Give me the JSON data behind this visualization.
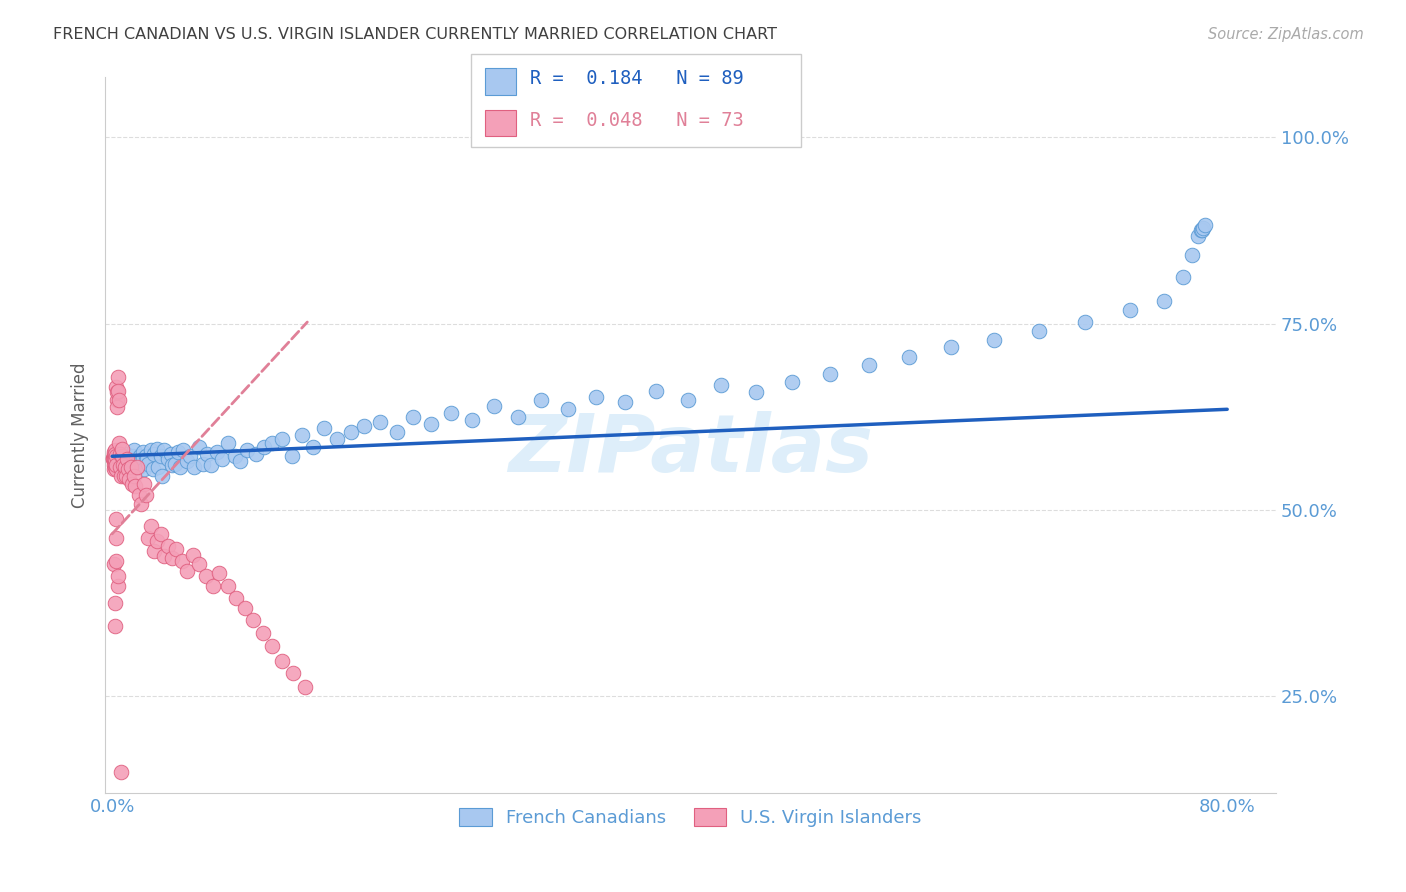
{
  "title": "FRENCH CANADIAN VS U.S. VIRGIN ISLANDER CURRENTLY MARRIED CORRELATION CHART",
  "source": "Source: ZipAtlas.com",
  "ylabel": "Currently Married",
  "blue_color": "#a8c8f0",
  "blue_edge": "#5b9bd5",
  "pink_color": "#f4a0b8",
  "pink_edge": "#e06080",
  "line_blue_color": "#1f5fbf",
  "line_pink_color": "#e08098",
  "axis_label_color": "#5b9bd5",
  "title_color": "#404040",
  "source_color": "#aaaaaa",
  "ylabel_color": "#606060",
  "grid_color": "#dddddd",
  "watermark_color": "#d0e8f8",
  "legend_border_color": "#cccccc",
  "watermark_text": "ZIPatlas",
  "legend_blue_label": "R =  0.184   N = 89",
  "legend_pink_label": "R =  0.048   N = 73",
  "legend_fc_label": "French Canadians",
  "legend_vi_label": "U.S. Virgin Islanders",
  "xlim_min": -0.005,
  "xlim_max": 0.835,
  "ylim_min": 0.12,
  "ylim_max": 1.08,
  "x_ticks": [
    0.0,
    0.8
  ],
  "x_tick_labels": [
    "0.0%",
    "80.0%"
  ],
  "y_ticks": [
    0.25,
    0.5,
    0.75,
    1.0
  ],
  "y_tick_labels": [
    "25.0%",
    "50.0%",
    "75.0%",
    "100.0%"
  ],
  "blue_x": [
    0.008,
    0.01,
    0.012,
    0.013,
    0.014,
    0.015,
    0.016,
    0.018,
    0.019,
    0.02,
    0.021,
    0.022,
    0.022,
    0.023,
    0.024,
    0.025,
    0.026,
    0.028,
    0.029,
    0.03,
    0.032,
    0.033,
    0.035,
    0.036,
    0.037,
    0.04,
    0.042,
    0.043,
    0.045,
    0.047,
    0.049,
    0.051,
    0.054,
    0.056,
    0.059,
    0.062,
    0.065,
    0.068,
    0.071,
    0.075,
    0.079,
    0.083,
    0.088,
    0.092,
    0.097,
    0.103,
    0.109,
    0.115,
    0.122,
    0.129,
    0.136,
    0.144,
    0.152,
    0.161,
    0.171,
    0.181,
    0.192,
    0.204,
    0.216,
    0.229,
    0.243,
    0.258,
    0.274,
    0.291,
    0.308,
    0.327,
    0.347,
    0.368,
    0.39,
    0.413,
    0.437,
    0.462,
    0.488,
    0.515,
    0.543,
    0.572,
    0.602,
    0.633,
    0.665,
    0.698,
    0.73,
    0.755,
    0.768,
    0.775,
    0.779,
    0.781,
    0.782,
    0.783,
    0.784
  ],
  "blue_y": [
    0.57,
    0.575,
    0.56,
    0.568,
    0.555,
    0.572,
    0.58,
    0.563,
    0.558,
    0.572,
    0.565,
    0.578,
    0.568,
    0.555,
    0.572,
    0.568,
    0.562,
    0.58,
    0.555,
    0.575,
    0.582,
    0.558,
    0.572,
    0.545,
    0.58,
    0.568,
    0.575,
    0.56,
    0.562,
    0.578,
    0.558,
    0.58,
    0.565,
    0.572,
    0.558,
    0.585,
    0.562,
    0.575,
    0.56,
    0.578,
    0.568,
    0.59,
    0.572,
    0.565,
    0.58,
    0.575,
    0.585,
    0.59,
    0.595,
    0.572,
    0.6,
    0.585,
    0.61,
    0.595,
    0.605,
    0.612,
    0.618,
    0.605,
    0.625,
    0.615,
    0.63,
    0.62,
    0.64,
    0.625,
    0.648,
    0.635,
    0.652,
    0.645,
    0.66,
    0.648,
    0.668,
    0.658,
    0.672,
    0.682,
    0.695,
    0.705,
    0.718,
    0.728,
    0.74,
    0.752,
    0.768,
    0.78,
    0.812,
    0.842,
    0.868,
    0.875,
    0.875,
    0.878,
    0.882
  ],
  "pink_x": [
    0.0008,
    0.0009,
    0.001,
    0.0011,
    0.0012,
    0.0013,
    0.0014,
    0.0015,
    0.0016,
    0.0017,
    0.0018,
    0.0019,
    0.002,
    0.0021,
    0.0022,
    0.0023,
    0.0025,
    0.0027,
    0.0029,
    0.003,
    0.0032,
    0.0035,
    0.0037,
    0.004,
    0.0043,
    0.0046,
    0.005,
    0.0054,
    0.0058,
    0.0063,
    0.0068,
    0.0073,
    0.0079,
    0.0085,
    0.0092,
    0.0099,
    0.0107,
    0.0115,
    0.0124,
    0.0134,
    0.0144,
    0.0155,
    0.0167,
    0.018,
    0.0194,
    0.0209,
    0.0225,
    0.0242,
    0.026,
    0.028,
    0.03,
    0.032,
    0.035,
    0.037,
    0.04,
    0.043,
    0.046,
    0.05,
    0.054,
    0.058,
    0.062,
    0.067,
    0.072,
    0.077,
    0.083,
    0.089,
    0.095,
    0.101,
    0.108,
    0.115,
    0.122,
    0.13,
    0.138
  ],
  "pink_y": [
    0.57,
    0.568,
    0.572,
    0.565,
    0.575,
    0.56,
    0.578,
    0.568,
    0.555,
    0.572,
    0.565,
    0.558,
    0.58,
    0.575,
    0.562,
    0.568,
    0.555,
    0.572,
    0.56,
    0.665,
    0.648,
    0.658,
    0.638,
    0.678,
    0.66,
    0.648,
    0.59,
    0.575,
    0.558,
    0.545,
    0.572,
    0.582,
    0.56,
    0.545,
    0.558,
    0.545,
    0.568,
    0.555,
    0.542,
    0.558,
    0.535,
    0.545,
    0.532,
    0.558,
    0.52,
    0.508,
    0.535,
    0.52,
    0.462,
    0.478,
    0.445,
    0.458,
    0.468,
    0.438,
    0.452,
    0.435,
    0.448,
    0.432,
    0.418,
    0.44,
    0.428,
    0.412,
    0.398,
    0.415,
    0.398,
    0.382,
    0.368,
    0.352,
    0.335,
    0.318,
    0.298,
    0.282,
    0.262
  ],
  "pink_extra_low_x": [
    0.001,
    0.002,
    0.002,
    0.003,
    0.003,
    0.003,
    0.004,
    0.004,
    0.006
  ],
  "pink_extra_low_y": [
    0.428,
    0.375,
    0.345,
    0.488,
    0.462,
    0.432,
    0.398,
    0.412,
    0.148
  ],
  "blue_line_x0": 0.0,
  "blue_line_x1": 0.8,
  "blue_line_y0": 0.572,
  "blue_line_y1": 0.635,
  "pink_line_x0": 0.0,
  "pink_line_x1": 0.14,
  "pink_line_y0": 0.468,
  "pink_line_y1": 0.752
}
